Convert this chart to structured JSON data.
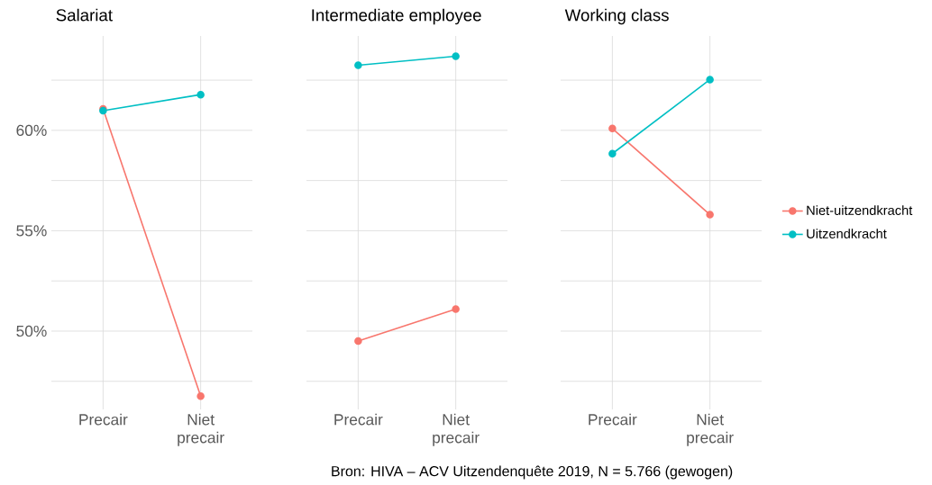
{
  "chart_data": [
    {
      "type": "line",
      "title": "Salariat",
      "categories": [
        "Precair",
        "Niet precair"
      ],
      "ylim": [
        46.1,
        64.7
      ],
      "yticks": [
        {
          "value": 47.5,
          "label": null
        },
        {
          "value": 50,
          "label": "50%"
        },
        {
          "value": 52.5,
          "label": null
        },
        {
          "value": 55,
          "label": "55%"
        },
        {
          "value": 57.5,
          "label": null
        },
        {
          "value": 60,
          "label": "60%"
        },
        {
          "value": 62.5,
          "label": null
        }
      ],
      "grid": true,
      "marker": "circle",
      "line_style": "solid",
      "series": [
        {
          "color": "#f8766d",
          "values": [
            61.07,
            46.76
          ]
        },
        {
          "color": "#00bfc4",
          "values": [
            60.98,
            61.78
          ]
        }
      ]
    },
    {
      "type": "line",
      "title": "Intermediate employee",
      "categories": [
        "Precair",
        "Niet precair"
      ],
      "ylim": [
        46.1,
        64.7
      ],
      "yticks": [
        {
          "value": 47.5,
          "label": null
        },
        {
          "value": 50,
          "label": null
        },
        {
          "value": 52.5,
          "label": null
        },
        {
          "value": 55,
          "label": null
        },
        {
          "value": 57.5,
          "label": null
        },
        {
          "value": 60,
          "label": null
        },
        {
          "value": 62.5,
          "label": null
        }
      ],
      "tick_labels": "x",
      "grid": true,
      "marker": "circle",
      "line_style": "solid",
      "series": [
        {
          "color": "#f8766d",
          "values": [
            49.51,
            51.1
          ]
        },
        {
          "color": "#00bfc4",
          "values": [
            63.24,
            63.69
          ]
        }
      ]
    },
    {
      "type": "line",
      "title": "Working class",
      "categories": [
        "Precair",
        "Niet precair"
      ],
      "ylim": [
        46.1,
        64.7
      ],
      "yticks": [
        {
          "value": 47.5,
          "label": null
        },
        {
          "value": 50,
          "label": null
        },
        {
          "value": 52.5,
          "label": null
        },
        {
          "value": 55,
          "label": null
        },
        {
          "value": 57.5,
          "label": null
        },
        {
          "value": 60,
          "label": null
        },
        {
          "value": 62.5,
          "label": null
        }
      ],
      "tick_labels": "x",
      "grid": true,
      "marker": "circle",
      "line_style": "solid",
      "legend": "right",
      "annotations": [
        "Bron: HIVA – ACV Uitzendenquête 2019, N = 5.766 (gewogen)"
      ],
      "series": [
        {
          "name": "Niet-uitzendkracht",
          "color": "#f8766d",
          "values": [
            60.09,
            55.8
          ]
        },
        {
          "name": "Uitzendkracht",
          "color": "#00bfc4",
          "values": [
            58.84,
            62.53
          ]
        }
      ]
    }
  ]
}
